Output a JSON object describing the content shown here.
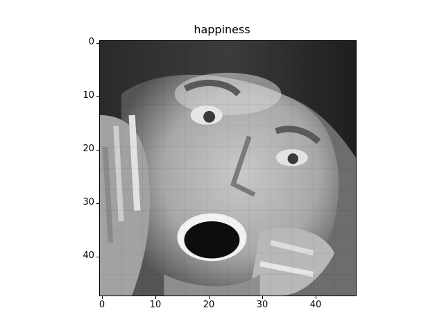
{
  "title": "happiness",
  "image": {
    "description_icon": "grayscale-face-image",
    "axes": {
      "x_ticks": [
        "0",
        "10",
        "20",
        "30",
        "40"
      ],
      "y_ticks": [
        "0",
        "10",
        "20",
        "30",
        "40"
      ],
      "x_range": [
        -0.5,
        47.5
      ],
      "y_range": [
        -0.5,
        47.5
      ]
    }
  }
}
